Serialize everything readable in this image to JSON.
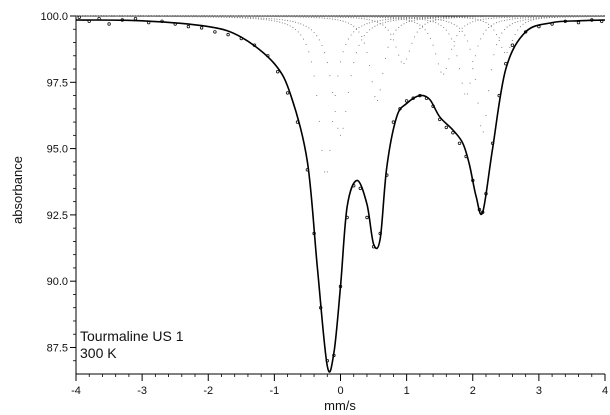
{
  "chart_data": {
    "type": "line",
    "title": "",
    "xlabel": "mm/s",
    "ylabel": "absorbance",
    "xlim": [
      -4,
      4
    ],
    "ylim": [
      86.5,
      100.0
    ],
    "x_ticks": [
      -4,
      -3,
      -2,
      -1,
      0,
      1,
      2,
      3,
      4
    ],
    "x_tick_labels": [
      "-4",
      "-3",
      "-2",
      "-1",
      "0",
      "1",
      "2",
      "3",
      "4"
    ],
    "y_ticks": [
      87.5,
      90.0,
      92.5,
      95.0,
      97.5,
      100.0
    ],
    "y_tick_labels": [
      "87.5",
      "90.0",
      "92.5",
      "95.0",
      "97.5",
      "100.0"
    ],
    "grid": false,
    "legend": "none",
    "annotations": [
      "Tourmaline US 1",
      "300 K"
    ],
    "series": [
      {
        "role": "fit",
        "style": "solid",
        "x": [
          -4.0,
          -3.0,
          -2.0,
          -1.5,
          -1.0,
          -0.75,
          -0.5,
          -0.35,
          -0.2,
          -0.1,
          0.0,
          0.1,
          0.25,
          0.4,
          0.5,
          0.6,
          0.7,
          0.85,
          1.0,
          1.2,
          1.35,
          1.5,
          1.7,
          1.85,
          1.95,
          2.05,
          2.15,
          2.3,
          2.5,
          2.8,
          3.2,
          3.6,
          4.0
        ],
        "y": [
          99.85,
          99.82,
          99.6,
          99.2,
          98.2,
          97.0,
          94.5,
          90.5,
          86.8,
          87.3,
          89.8,
          92.8,
          93.8,
          92.9,
          91.4,
          91.6,
          94.3,
          96.2,
          96.7,
          97.0,
          96.85,
          96.2,
          95.7,
          95.2,
          94.4,
          93.2,
          92.6,
          95.0,
          98.0,
          99.4,
          99.75,
          99.82,
          99.85
        ]
      },
      {
        "role": "data",
        "style": "points",
        "x": [
          -3.95,
          -3.8,
          -3.65,
          -3.5,
          -3.3,
          -3.1,
          -2.9,
          -2.7,
          -2.5,
          -2.3,
          -2.1,
          -1.9,
          -1.7,
          -1.5,
          -1.3,
          -1.1,
          -0.95,
          -0.8,
          -0.65,
          -0.5,
          -0.4,
          -0.3,
          -0.2,
          -0.1,
          0.0,
          0.1,
          0.2,
          0.3,
          0.4,
          0.5,
          0.6,
          0.7,
          0.8,
          0.9,
          1.0,
          1.1,
          1.2,
          1.3,
          1.4,
          1.5,
          1.6,
          1.7,
          1.8,
          1.9,
          2.0,
          2.1,
          2.15,
          2.2,
          2.3,
          2.4,
          2.5,
          2.6,
          2.8,
          3.0,
          3.2,
          3.4,
          3.6,
          3.8,
          3.95
        ],
        "y": [
          99.95,
          99.8,
          99.9,
          99.7,
          99.85,
          99.9,
          99.75,
          99.8,
          99.7,
          99.6,
          99.55,
          99.4,
          99.3,
          99.15,
          98.9,
          98.5,
          97.9,
          97.1,
          96.0,
          94.2,
          91.8,
          89.0,
          87.0,
          87.2,
          89.8,
          92.4,
          93.6,
          93.5,
          92.4,
          91.3,
          91.8,
          94.0,
          96.0,
          96.5,
          96.8,
          96.9,
          97.0,
          96.9,
          96.6,
          96.1,
          95.8,
          95.6,
          95.2,
          94.7,
          93.8,
          92.7,
          92.6,
          93.3,
          95.2,
          97.0,
          98.2,
          98.9,
          99.4,
          99.6,
          99.7,
          99.8,
          99.75,
          99.85,
          99.8
        ]
      },
      {
        "role": "component",
        "style": "dotted",
        "center": -0.22,
        "width": 0.28,
        "depth": 6.0
      },
      {
        "role": "component",
        "style": "dotted",
        "center": 0.0,
        "width": 0.32,
        "depth": 4.5
      },
      {
        "role": "component",
        "style": "dotted",
        "center": 0.55,
        "width": 0.26,
        "depth": 3.2
      },
      {
        "role": "component",
        "style": "dotted",
        "center": 0.95,
        "width": 0.3,
        "depth": 1.8
      },
      {
        "role": "component",
        "style": "dotted",
        "center": 1.55,
        "width": 0.3,
        "depth": 2.2
      },
      {
        "role": "component",
        "style": "dotted",
        "center": 1.9,
        "width": 0.28,
        "depth": 3.0
      },
      {
        "role": "component",
        "style": "dotted",
        "center": 2.15,
        "width": 0.24,
        "depth": 4.4
      },
      {
        "role": "component",
        "style": "dotted",
        "center": 2.5,
        "width": 0.28,
        "depth": 1.4
      }
    ]
  }
}
